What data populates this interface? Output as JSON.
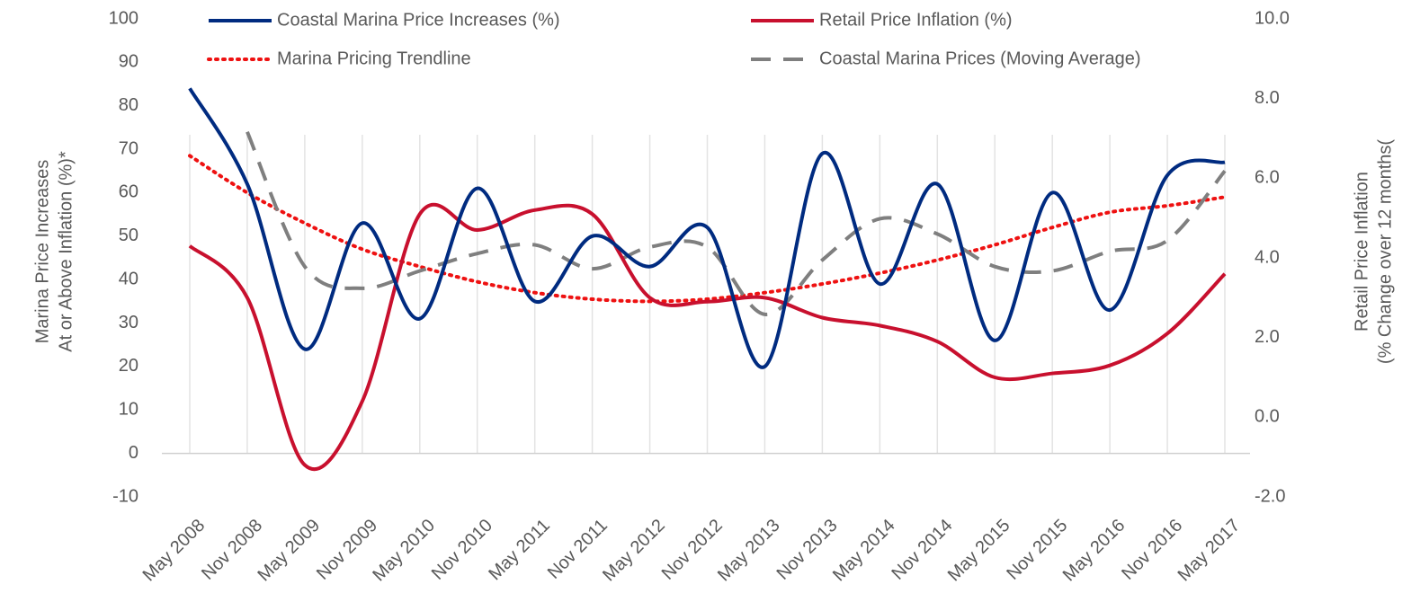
{
  "chart_data": {
    "type": "line",
    "categories": [
      "May 2008",
      "Nov 2008",
      "May 2009",
      "Nov 2009",
      "May 2010",
      "Nov 2010",
      "May 2011",
      "Nov 2011",
      "May 2012",
      "Nov 2012",
      "May 2013",
      "Nov 2013",
      "May 2014",
      "Nov 2014",
      "May 2015",
      "Nov 2015",
      "May 2016",
      "Nov 2016",
      "May 2017"
    ],
    "ylabel": [
      "Marina Price Increases",
      "At or Above Inflation (%)*"
    ],
    "y2label": [
      "Retail Price Inflation",
      "(% Change over 12 months("
    ],
    "ylim": [
      -10,
      100
    ],
    "yticks": [
      -10,
      0,
      10,
      20,
      30,
      40,
      50,
      60,
      70,
      80,
      90,
      100
    ],
    "y2lim": [
      -2,
      10
    ],
    "y2ticks": [
      {
        "value": -2,
        "label": "-2.0"
      },
      {
        "value": 0,
        "label": "0.0"
      },
      {
        "value": 2,
        "label": "2.0"
      },
      {
        "value": 4,
        "label": "4.0"
      },
      {
        "value": 6,
        "label": "6.0"
      },
      {
        "value": 8,
        "label": "8.0"
      },
      {
        "value": 10,
        "label": "10.0"
      }
    ],
    "series": [
      {
        "name": "Coastal Marina Price Increases (%)",
        "color": "#002b80",
        "style": "solid",
        "values": [
          84,
          62,
          24,
          53,
          31,
          61,
          35,
          50,
          43,
          52,
          20,
          69,
          39,
          62,
          26,
          60,
          33,
          64,
          67
        ]
      },
      {
        "name": "Retail Price Inflation (%)",
        "color": "#c8102e",
        "style": "solid",
        "axis": "y2",
        "values": [
          4.3,
          3.0,
          -1.2,
          0.4,
          5.1,
          4.7,
          5.2,
          5.1,
          3.0,
          2.9,
          3.0,
          2.5,
          2.3,
          1.9,
          1.0,
          1.1,
          1.3,
          2.1,
          3.6
        ]
      },
      {
        "name": "Marina Pricing Trendline",
        "color": "#ee1111",
        "style": "dotted",
        "values": [
          68.5,
          60,
          53,
          47,
          43,
          39.5,
          37,
          35.5,
          35,
          35.5,
          37,
          39,
          41.5,
          44.5,
          48,
          52,
          55.5,
          57,
          59
        ]
      },
      {
        "name": "Coastal Marina Prices (Moving Average)",
        "color": "#7f7f7f",
        "style": "dashed",
        "values": [
          null,
          74,
          43,
          38,
          42,
          46,
          48,
          42.5,
          47.5,
          47.5,
          32,
          44.5,
          54,
          50.5,
          43,
          42,
          46.5,
          49,
          65
        ]
      }
    ]
  }
}
